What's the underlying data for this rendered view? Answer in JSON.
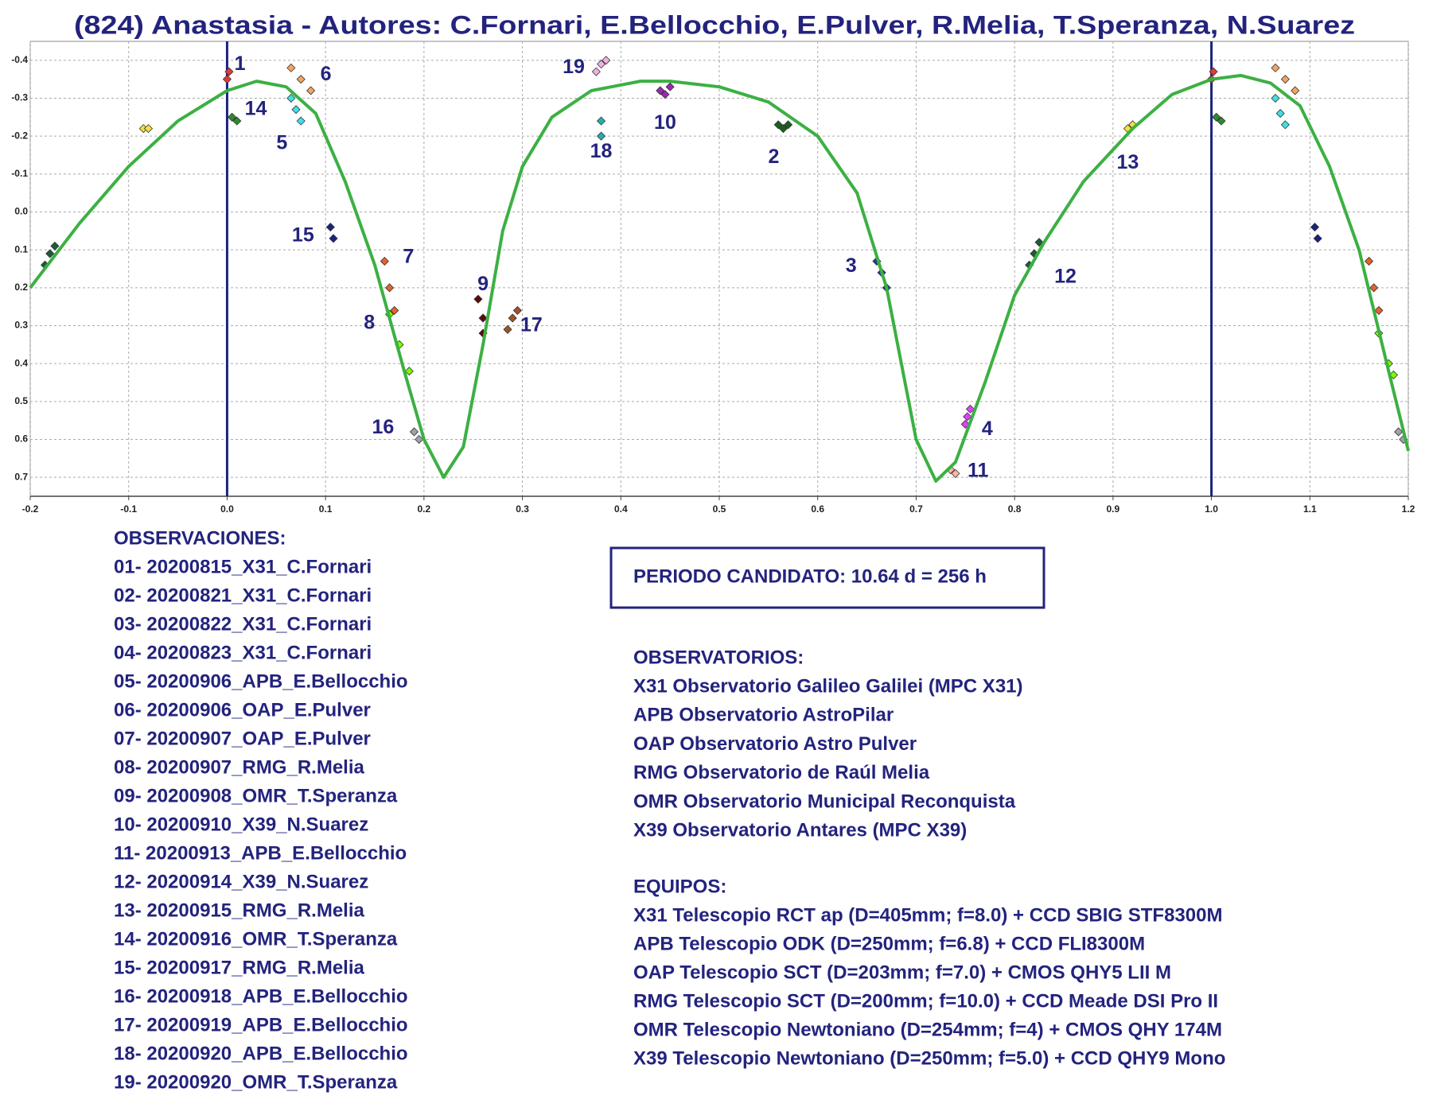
{
  "chart_data": {
    "type": "scatter",
    "title": "(824) Anastasia - Autores: C.Fornari, E.Bellocchio, E.Pulver, R.Melia, T.Speranza, N.Suarez",
    "xlim": [
      -0.2,
      1.2
    ],
    "ylim": [
      -0.45,
      0.75
    ],
    "y_inverted": true,
    "grid": true,
    "xticks": [
      -0.2,
      -0.1,
      {
        "value": 0,
        "label": "0.0"
      },
      0.1,
      0.2,
      0.3,
      0.4,
      0.5,
      0.6,
      0.7,
      0.8,
      0.9,
      {
        "value": 1,
        "label": "1.0"
      },
      1.1,
      1.2
    ],
    "yticks": [
      -0.4,
      -0.3,
      -0.2,
      -0.1,
      {
        "value": 0,
        "label": "0.0"
      },
      0.1,
      0.2,
      0.3,
      0.4,
      0.5,
      0.6,
      0.7
    ],
    "vlines": [
      0,
      1
    ],
    "vline_color": "#1a237e",
    "series": [
      {
        "name": "1",
        "color": "#e53935",
        "x": [
          0.0,
          0.002,
          1.0,
          1.002
        ],
        "y": [
          -0.35,
          -0.37,
          -0.35,
          -0.37
        ]
      },
      {
        "name": "2",
        "color": "#1b5e20",
        "x": [
          0.56,
          0.565,
          0.57
        ],
        "y": [
          -0.23,
          -0.22,
          -0.23
        ]
      },
      {
        "name": "3",
        "color": "#1a3a9e",
        "x": [
          0.66,
          0.665,
          0.67
        ],
        "y": [
          0.13,
          0.16,
          0.2
        ]
      },
      {
        "name": "4",
        "color": "#e040fb",
        "x": [
          0.75,
          0.752,
          0.755
        ],
        "y": [
          0.56,
          0.54,
          0.52
        ]
      },
      {
        "name": "5",
        "color": "#40e0e0",
        "x": [
          0.065,
          0.07,
          0.075,
          1.065,
          1.07,
          1.075
        ],
        "y": [
          -0.3,
          -0.27,
          -0.24,
          -0.3,
          -0.26,
          -0.23
        ]
      },
      {
        "name": "6",
        "color": "#f4a460",
        "x": [
          0.065,
          0.075,
          0.085,
          1.065,
          1.075,
          1.085
        ],
        "y": [
          -0.38,
          -0.35,
          -0.32,
          -0.38,
          -0.35,
          -0.32
        ]
      },
      {
        "name": "7",
        "color": "#e8602c",
        "x": [
          0.16,
          0.165,
          0.17,
          1.16,
          1.165,
          1.17
        ],
        "y": [
          0.13,
          0.2,
          0.26,
          0.13,
          0.2,
          0.26
        ]
      },
      {
        "name": "8",
        "color": "#7cfc00",
        "x": [
          0.165,
          0.175,
          0.185,
          1.17,
          1.18,
          1.185
        ],
        "y": [
          0.27,
          0.35,
          0.42,
          0.32,
          0.4,
          0.43
        ]
      },
      {
        "name": "9",
        "color": "#5a0a0a",
        "x": [
          0.26,
          0.255,
          0.26
        ],
        "y": [
          0.28,
          0.23,
          0.32
        ]
      },
      {
        "name": "10",
        "color": "#9c27b0",
        "x": [
          0.445,
          0.44,
          0.45
        ],
        "y": [
          -0.31,
          -0.32,
          -0.33
        ]
      },
      {
        "name": "11",
        "color": "#ffb6a0",
        "x": [
          0.735,
          0.74
        ],
        "y": [
          0.68,
          0.69
        ]
      },
      {
        "name": "12",
        "color": "#1e5a3a",
        "x": [
          0.82,
          0.815,
          0.825,
          -0.185,
          -0.18,
          -0.175
        ],
        "y": [
          0.11,
          0.14,
          0.08,
          0.14,
          0.11,
          0.09
        ]
      },
      {
        "name": "13",
        "color": "#f2e040",
        "x": [
          0.915,
          0.92,
          -0.085,
          -0.08
        ],
        "y": [
          -0.22,
          -0.23,
          -0.22,
          -0.22
        ]
      },
      {
        "name": "14",
        "color": "#2e8b2e",
        "x": [
          0.005,
          0.01,
          1.005,
          1.01
        ],
        "y": [
          -0.25,
          -0.24,
          -0.25,
          -0.24
        ]
      },
      {
        "name": "15",
        "color": "#1a237e",
        "x": [
          0.105,
          0.108,
          1.105,
          1.108
        ],
        "y": [
          0.04,
          0.07,
          0.04,
          0.07
        ]
      },
      {
        "name": "16",
        "color": "#a0a0b0",
        "x": [
          0.19,
          0.195,
          1.19,
          1.195
        ],
        "y": [
          0.58,
          0.6,
          0.58,
          0.6
        ]
      },
      {
        "name": "17",
        "color": "#a0522d",
        "x": [
          0.285,
          0.29,
          0.295
        ],
        "y": [
          0.31,
          0.28,
          0.26
        ]
      },
      {
        "name": "18",
        "color": "#20b2aa",
        "x": [
          0.38,
          0.38
        ],
        "y": [
          -0.24,
          -0.2
        ]
      },
      {
        "name": "19",
        "color": "#f0b0e0",
        "x": [
          0.38,
          0.375,
          0.385
        ],
        "y": [
          -0.39,
          -0.37,
          -0.4
        ]
      }
    ],
    "fit": {
      "color": "#3cb043",
      "x": [
        -0.2,
        -0.15,
        -0.1,
        -0.05,
        0.0,
        0.03,
        0.06,
        0.09,
        0.12,
        0.15,
        0.18,
        0.2,
        0.22,
        0.24,
        0.26,
        0.28,
        0.3,
        0.33,
        0.37,
        0.42,
        0.45,
        0.5,
        0.55,
        0.6,
        0.64,
        0.67,
        0.7,
        0.72,
        0.74,
        0.77,
        0.8,
        0.83,
        0.87,
        0.92,
        0.96,
        1.0,
        1.03,
        1.06,
        1.09,
        1.12,
        1.15,
        1.18,
        1.2
      ],
      "y": [
        0.2,
        0.03,
        -0.12,
        -0.24,
        -0.32,
        -0.345,
        -0.33,
        -0.26,
        -0.08,
        0.14,
        0.42,
        0.6,
        0.7,
        0.62,
        0.35,
        0.05,
        -0.12,
        -0.25,
        -0.32,
        -0.345,
        -0.345,
        -0.33,
        -0.29,
        -0.2,
        -0.05,
        0.2,
        0.6,
        0.71,
        0.66,
        0.45,
        0.22,
        0.08,
        -0.08,
        -0.22,
        -0.31,
        -0.35,
        -0.36,
        -0.34,
        -0.28,
        -0.12,
        0.1,
        0.42,
        0.63
      ]
    }
  },
  "observaciones": {
    "title": "OBSERVACIONES:",
    "items": [
      "01- 20200815_X31_C.Fornari",
      "02- 20200821_X31_C.Fornari",
      "03- 20200822_X31_C.Fornari",
      "04- 20200823_X31_C.Fornari",
      "05- 20200906_APB_E.Bellocchio",
      "06- 20200906_OAP_E.Pulver",
      "07- 20200907_OAP_E.Pulver",
      "08- 20200907_RMG_R.Melia",
      "09- 20200908_OMR_T.Speranza",
      "10- 20200910_X39_N.Suarez",
      "11- 20200913_APB_E.Bellocchio",
      "12- 20200914_X39_N.Suarez",
      "13- 20200915_RMG_R.Melia",
      "14- 20200916_OMR_T.Speranza",
      "15- 20200917_RMG_R.Melia",
      "16- 20200918_APB_E.Bellocchio",
      "17- 20200919_APB_E.Bellocchio",
      "18- 20200920_APB_E.Bellocchio",
      "19- 20200920_OMR_T.Speranza"
    ]
  },
  "periodo": "PERIODO CANDIDATO: 10.64 d = 256 h",
  "observatorios": {
    "title": "OBSERVATORIOS:",
    "items": [
      "X31 Observatorio Galileo Galilei (MPC X31)",
      "APB Observatorio AstroPilar",
      "OAP Observatorio Astro Pulver",
      "RMG Observatorio de Raúl Melia",
      "OMR Observatorio Municipal Reconquista",
      "X39 Observatorio Antares (MPC X39)"
    ]
  },
  "equipos": {
    "title": "EQUIPOS:",
    "items": [
      "X31 Telescopio RCT ap (D=405mm; f=8.0) + CCD SBIG STF8300M",
      "APB Telescopio ODK (D=250mm; f=6.8) + CCD FLI8300M",
      "OAP Telescopio SCT (D=203mm; f=7.0) + CMOS QHY5 LII M",
      "RMG Telescopio SCT (D=200mm; f=10.0) + CCD Meade DSI Pro II",
      "OMR Telescopio Newtoniano (D=254mm; f=4) + CMOS QHY 174M",
      "X39 Telescopio Newtoniano (D=250mm; f=5.0) + CCD QHY9 Mono"
    ]
  }
}
